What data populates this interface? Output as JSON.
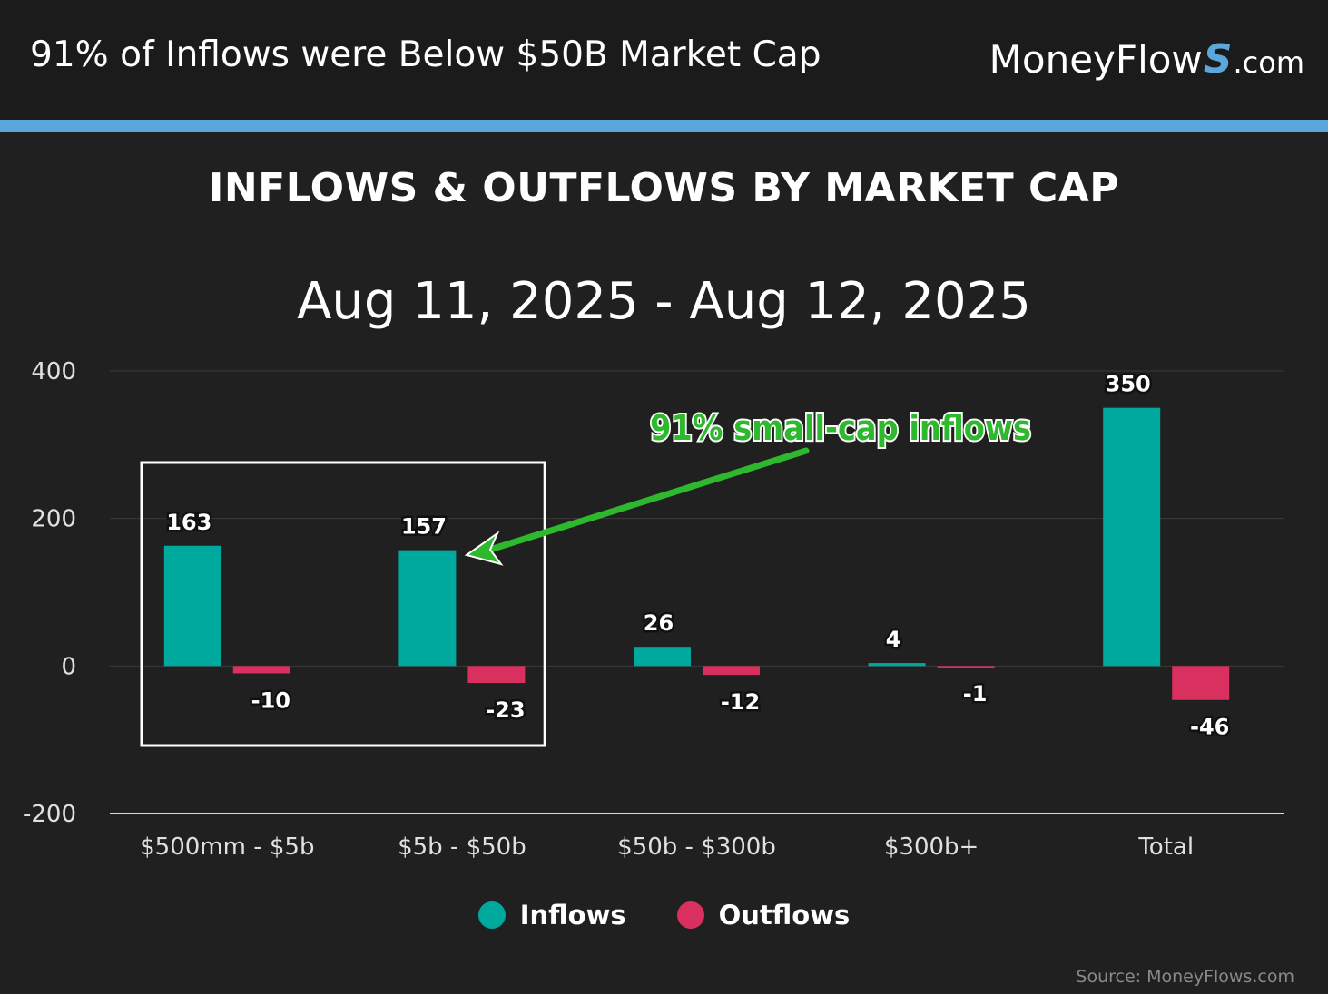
{
  "header": {
    "title": "91% of Inflows were Below $50B Market Cap",
    "brand_main": "MoneyFlow",
    "brand_s": "S",
    "brand_suffix": ".com"
  },
  "colors": {
    "background": "#202020",
    "header_bg": "#1b1b1b",
    "accent": "#5ba7db",
    "inflows": "#00a99d",
    "outflows": "#d9305f",
    "annotation": "#2eb82e",
    "grid": "#3a3a3a"
  },
  "chart_data": {
    "type": "bar",
    "title": "INFLOWS & OUTFLOWS BY MARKET CAP",
    "subtitle": "Aug 11, 2025 - Aug 12, 2025",
    "categories": [
      "$500mm - $5b",
      "$5b - $50b",
      "$50b - $300b",
      "$300b+",
      "Total"
    ],
    "series": [
      {
        "name": "Inflows",
        "values": [
          163,
          157,
          26,
          4,
          350
        ],
        "labels": [
          "163",
          "157",
          "26",
          "4",
          "350"
        ]
      },
      {
        "name": "Outflows",
        "values": [
          -10,
          -23,
          -12,
          -1,
          -46
        ],
        "labels": [
          "-10",
          "-23",
          "-12",
          "-1",
          "-46"
        ]
      }
    ],
    "yticks": [
      "400",
      "200",
      "0",
      "-200"
    ],
    "ytick_values": [
      400,
      200,
      0,
      -200
    ],
    "ylim": [
      -200,
      400
    ],
    "grid": true,
    "legend": "bottom-center",
    "annotation": {
      "text": "91% small-cap inflows",
      "highlight_categories": [
        "$500mm - $5b",
        "$5b - $50b"
      ]
    }
  },
  "source": "Source: MoneyFlows.com"
}
